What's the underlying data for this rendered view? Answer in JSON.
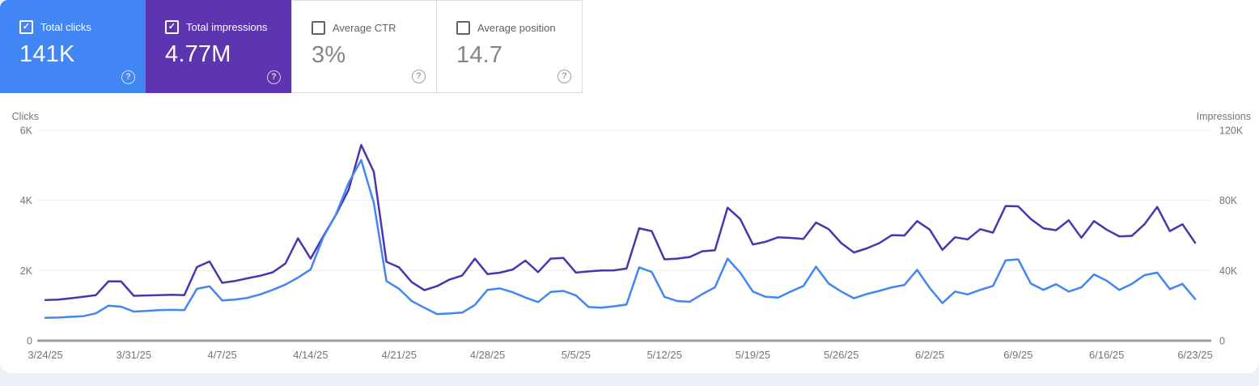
{
  "panel": {
    "name": "Search performance panel"
  },
  "cards": [
    {
      "label": "Total clicks",
      "value": "141K",
      "checked": true,
      "bg": "#4285f4",
      "label_color": "#ffffff",
      "value_color": "#ffffff",
      "checkbox_color": "#ffffff",
      "help_color": "rgba(255,255,255,0.75)"
    },
    {
      "label": "Total impressions",
      "value": "4.77M",
      "checked": true,
      "bg": "#5e35b1",
      "label_color": "#ffffff",
      "value_color": "#ffffff",
      "checkbox_color": "#ffffff",
      "help_color": "rgba(255,255,255,0.75)"
    },
    {
      "label": "Average CTR",
      "value": "3%",
      "checked": false,
      "bg": "",
      "label_color": "#5f6368",
      "value_color": "#80868b",
      "checkbox_color": "#5f6368",
      "help_color": "#9aa0a6"
    },
    {
      "label": "Average position",
      "value": "14.7",
      "checked": false,
      "bg": "",
      "label_color": "#5f6368",
      "value_color": "#80868b",
      "checkbox_color": "#5f6368",
      "help_color": "#9aa0a6"
    }
  ],
  "chart_data": {
    "type": "line",
    "frequency": "daily",
    "start_date": "3/24/25",
    "end_date": "6/23/25",
    "x_labels": [
      "3/24/25",
      "3/31/25",
      "4/7/25",
      "4/14/25",
      "4/21/25",
      "4/28/25",
      "5/5/25",
      "5/12/25",
      "5/19/25",
      "5/26/25",
      "6/2/25",
      "6/9/25",
      "6/16/25",
      "6/23/25"
    ],
    "left_axis": {
      "title": "Clicks",
      "ticks": [
        "6K",
        "4K",
        "2K",
        "0"
      ],
      "max": 6000,
      "min": 0
    },
    "right_axis": {
      "title": "Impressions",
      "ticks": [
        "120K",
        "80K",
        "40K",
        "0"
      ],
      "max": 120000,
      "min": 0
    },
    "grid": "horizontal-only",
    "legend": "none (series toggled via metric cards)",
    "series": [
      {
        "name": "Total clicks",
        "axis": "left",
        "color": "#4285f4",
        "values": [
          650,
          660,
          680,
          700,
          780,
          1000,
          970,
          830,
          850,
          870,
          880,
          870,
          1480,
          1550,
          1150,
          1170,
          1220,
          1320,
          1450,
          1600,
          1800,
          2030,
          2950,
          3600,
          4500,
          5150,
          3930,
          1700,
          1480,
          1130,
          940,
          760,
          775,
          800,
          1020,
          1450,
          1490,
          1380,
          1230,
          1100,
          1390,
          1420,
          1290,
          960,
          940,
          980,
          1030,
          2090,
          1960,
          1250,
          1130,
          1110,
          1330,
          1520,
          2340,
          1940,
          1400,
          1250,
          1230,
          1400,
          1560,
          2110,
          1630,
          1400,
          1210,
          1330,
          1420,
          1520,
          1590,
          2020,
          1500,
          1070,
          1400,
          1320,
          1450,
          1560,
          2290,
          2320,
          1630,
          1450,
          1610,
          1400,
          1520,
          1890,
          1710,
          1450,
          1620,
          1870,
          1940,
          1470,
          1620,
          1190
        ]
      },
      {
        "name": "Total impressions",
        "axis": "right",
        "color": "#4e33b0",
        "values": [
          23200,
          23400,
          24200,
          25000,
          26000,
          33900,
          33800,
          25600,
          25800,
          26000,
          26200,
          26000,
          42000,
          45200,
          33000,
          34000,
          35600,
          37000,
          39000,
          44000,
          58400,
          46800,
          59600,
          71800,
          86000,
          111600,
          96300,
          45000,
          41800,
          33400,
          28800,
          31100,
          34900,
          37200,
          46800,
          38000,
          38800,
          40600,
          45700,
          39100,
          46800,
          47200,
          38800,
          39500,
          40000,
          40100,
          41100,
          64100,
          62500,
          46400,
          46800,
          47700,
          51000,
          51600,
          75900,
          69400,
          54900,
          56400,
          59000,
          58600,
          58000,
          67400,
          63600,
          55600,
          50300,
          52600,
          55600,
          60200,
          60000,
          68200,
          63300,
          51800,
          59000,
          57800,
          63600,
          61600,
          76800,
          76600,
          69400,
          64100,
          63000,
          68700,
          58700,
          68200,
          63300,
          59500,
          59800,
          66400,
          76300,
          62500,
          66400,
          55900
        ]
      }
    ]
  },
  "colors": {
    "clicks_blue": "#4285f4",
    "impressions_purple_card": "#5e35b1",
    "impressions_purple_line": "#4e33b0",
    "gridline": "#ececec",
    "zero_line": "#9e9e9e",
    "axis_text": "#757575",
    "card_border": "#dadce0",
    "page_background": "#edf0f6"
  }
}
